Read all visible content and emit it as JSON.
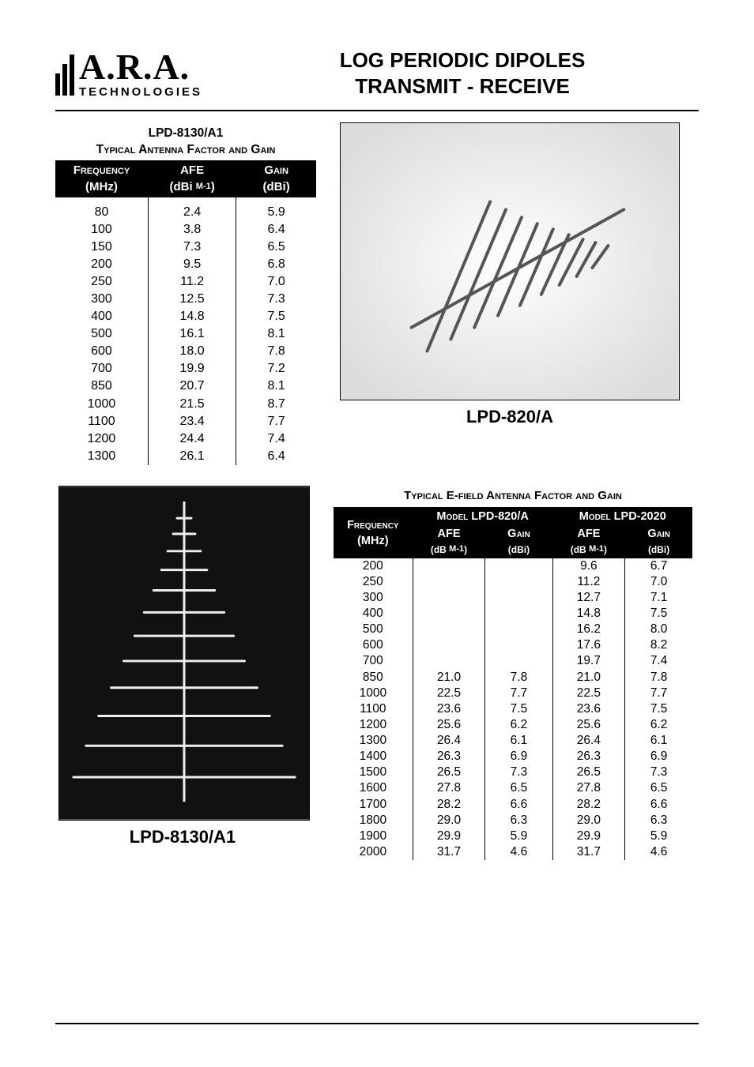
{
  "logo": {
    "main": "A.R.A.",
    "sub": "TECHNOLOGIES"
  },
  "title_line1": "LOG PERIODIC DIPOLES",
  "title_line2": "TRANSMIT - RECEIVE",
  "table1": {
    "model": "LPD-8130/A1",
    "subtitle": "Typical Antenna Factor and Gain",
    "columns": {
      "freq_label": "Frequency",
      "freq_unit": "(MHz)",
      "afe_label": "AFE",
      "afe_unit_prefix": "(dBi ",
      "afe_unit_suffix": ")",
      "gain_label": "Gain",
      "gain_unit": "(dBi)"
    },
    "rows": [
      {
        "f": "80",
        "a": "2.4",
        "g": "5.9"
      },
      {
        "f": "100",
        "a": "3.8",
        "g": "6.4"
      },
      {
        "f": "150",
        "a": "7.3",
        "g": "6.5"
      },
      {
        "f": "200",
        "a": "9.5",
        "g": "6.8"
      },
      {
        "f": "250",
        "a": "11.2",
        "g": "7.0"
      },
      {
        "f": "300",
        "a": "12.5",
        "g": "7.3"
      },
      {
        "f": "400",
        "a": "14.8",
        "g": "7.5"
      },
      {
        "f": "500",
        "a": "16.1",
        "g": "8.1"
      },
      {
        "f": "600",
        "a": "18.0",
        "g": "7.8"
      },
      {
        "f": "700",
        "a": "19.9",
        "g": "7.2"
      },
      {
        "f": "850",
        "a": "20.7",
        "g": "8.1"
      },
      {
        "f": "1000",
        "a": "21.5",
        "g": "8.7"
      },
      {
        "f": "1100",
        "a": "23.4",
        "g": "7.7"
      },
      {
        "f": "1200",
        "a": "24.4",
        "g": "7.4"
      },
      {
        "f": "1300",
        "a": "26.1",
        "g": "6.4"
      }
    ],
    "col_bg": "#000000",
    "col_fg": "#ffffff"
  },
  "photo1_caption": "LPD-820/A",
  "photo2_caption": "LPD-8130/A1",
  "table2": {
    "title": "Typical E-field Antenna Factor and Gain",
    "col_freq": "Frequency",
    "col_freq_unit": "(MHz)",
    "col_m820": "Model LPD-820/A",
    "col_m2020": "Model LPD-2020",
    "sub_afe": "AFE",
    "sub_gain": "Gain",
    "afe_unit_prefix": "(dB ",
    "afe_unit_suffix": ")",
    "gain_unit": "(dBi)",
    "rows": [
      {
        "f": "200",
        "a1": "",
        "g1": "",
        "a2": "9.6",
        "g2": "6.7"
      },
      {
        "f": "250",
        "a1": "",
        "g1": "",
        "a2": "11.2",
        "g2": "7.0"
      },
      {
        "f": "300",
        "a1": "",
        "g1": "",
        "a2": "12.7",
        "g2": "7.1"
      },
      {
        "f": "400",
        "a1": "",
        "g1": "",
        "a2": "14.8",
        "g2": "7.5"
      },
      {
        "f": "500",
        "a1": "",
        "g1": "",
        "a2": "16.2",
        "g2": "8.0"
      },
      {
        "f": "600",
        "a1": "",
        "g1": "",
        "a2": "17.6",
        "g2": "8.2"
      },
      {
        "f": "700",
        "a1": "",
        "g1": "",
        "a2": "19.7",
        "g2": "7.4"
      },
      {
        "f": "850",
        "a1": "21.0",
        "g1": "7.8",
        "a2": "21.0",
        "g2": "7.8"
      },
      {
        "f": "1000",
        "a1": "22.5",
        "g1": "7.7",
        "a2": "22.5",
        "g2": "7.7"
      },
      {
        "f": "1100",
        "a1": "23.6",
        "g1": "7.5",
        "a2": "23.6",
        "g2": "7.5"
      },
      {
        "f": "1200",
        "a1": "25.6",
        "g1": "6.2",
        "a2": "25.6",
        "g2": "6.2"
      },
      {
        "f": "1300",
        "a1": "26.4",
        "g1": "6.1",
        "a2": "26.4",
        "g2": "6.1"
      },
      {
        "f": "1400",
        "a1": "26.3",
        "g1": "6.9",
        "a2": "26.3",
        "g2": "6.9"
      },
      {
        "f": "1500",
        "a1": "26.5",
        "g1": "7.3",
        "a2": "26.5",
        "g2": "7.3"
      },
      {
        "f": "1600",
        "a1": "27.8",
        "g1": "6.5",
        "a2": "27.8",
        "g2": "6.5"
      },
      {
        "f": "1700",
        "a1": "28.2",
        "g1": "6.6",
        "a2": "28.2",
        "g2": "6.6"
      },
      {
        "f": "1800",
        "a1": "29.0",
        "g1": "6.3",
        "a2": "29.0",
        "g2": "6.3"
      },
      {
        "f": "1900",
        "a1": "29.9",
        "g1": "5.9",
        "a2": "29.9",
        "g2": "5.9"
      },
      {
        "f": "2000",
        "a1": "31.7",
        "g1": "4.6",
        "a2": "31.7",
        "g2": "4.6"
      }
    ],
    "col_bg": "#000000",
    "col_fg": "#ffffff"
  },
  "superscript_m1": "M-1"
}
